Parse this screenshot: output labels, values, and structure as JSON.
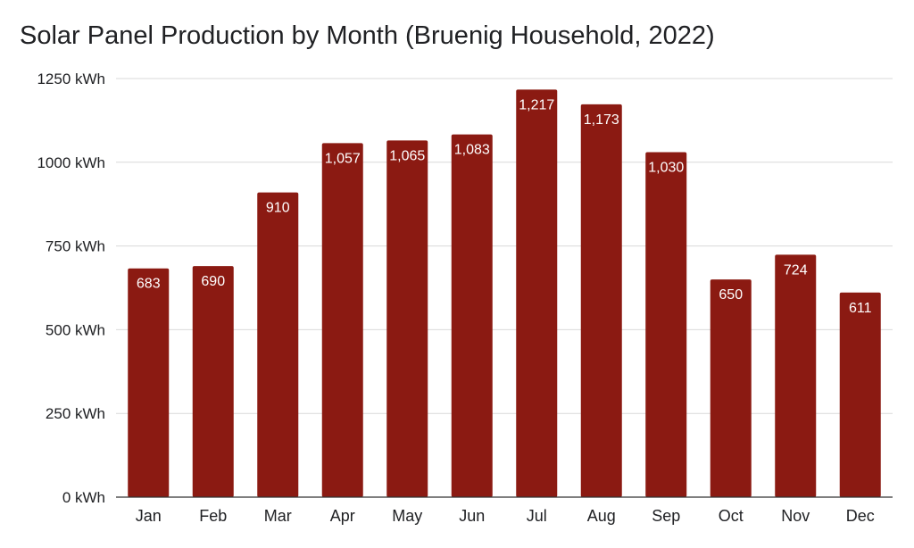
{
  "chart_data": {
    "type": "bar",
    "title": "Solar Panel Production by Month (Bruenig Household, 2022)",
    "xlabel": "",
    "ylabel": "",
    "categories": [
      "Jan",
      "Feb",
      "Mar",
      "Apr",
      "May",
      "Jun",
      "Jul",
      "Aug",
      "Sep",
      "Oct",
      "Nov",
      "Dec"
    ],
    "values": [
      683,
      690,
      910,
      1057,
      1065,
      1083,
      1217,
      1173,
      1030,
      650,
      724,
      611
    ],
    "data_labels": [
      "683",
      "690",
      "910",
      "1,057",
      "1,065",
      "1,083",
      "1,217",
      "1,173",
      "1,030",
      "650",
      "724",
      "611"
    ],
    "ylim": [
      0,
      1250
    ],
    "yticks": [
      0,
      250,
      500,
      750,
      1000,
      1250
    ],
    "ytick_labels": [
      "0 kWh",
      "250 kWh",
      "500 kWh",
      "750 kWh",
      "1000 kWh",
      "1250 kWh"
    ],
    "bar_color": "#8b1a12",
    "grid": true,
    "legend": "none"
  }
}
